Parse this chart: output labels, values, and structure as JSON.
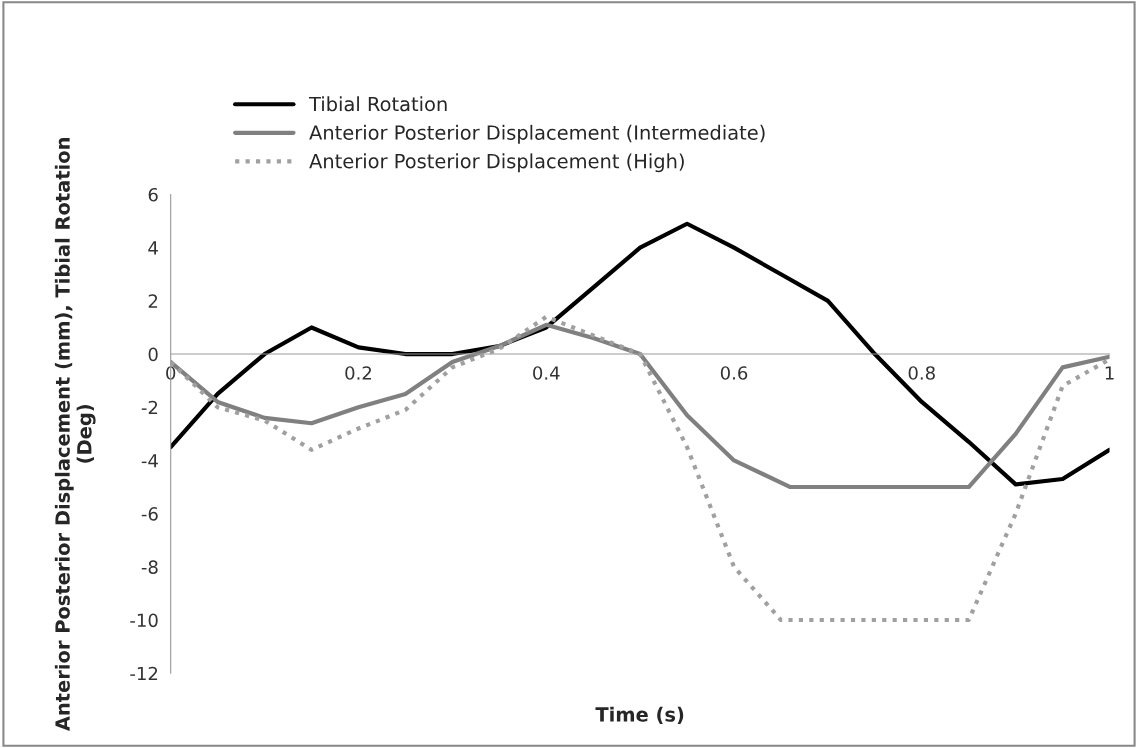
{
  "chart_data": {
    "type": "line",
    "xlabel": "Time (s)",
    "ylabel": "Anterior Posterior Displacement (mm), Tibial Rotation (Deg)",
    "xlim": [
      0,
      1
    ],
    "xticks": [
      0,
      0.2,
      0.4,
      0.6,
      0.8,
      1
    ],
    "ylim": [
      -12,
      6
    ],
    "yticks": [
      -12,
      -10,
      -8,
      -6,
      -4,
      -2,
      0,
      2,
      4,
      6
    ],
    "grid": false,
    "legend": "top left",
    "marker": "none",
    "series": [
      {
        "name": "Tibial Rotation",
        "color": "#000000",
        "line_style": "solid",
        "x": [
          0,
          0.05,
          0.1,
          0.15,
          0.2,
          0.25,
          0.3,
          0.35,
          0.4,
          0.45,
          0.5,
          0.55,
          0.6,
          0.65,
          0.7,
          0.75,
          0.8,
          0.85,
          0.9,
          0.95,
          1
        ],
        "values": [
          -3.5,
          -1.5,
          0,
          1,
          0.25,
          0,
          0,
          0.3,
          1,
          2.5,
          4,
          4.9,
          4,
          3,
          2,
          0,
          -1.8,
          -3.3,
          -4.9,
          -4.7,
          -3.6
        ]
      },
      {
        "name": "Anterior Posterior Displacement (Intermediate)",
        "color": "#808080",
        "line_style": "solid",
        "x": [
          0,
          0.05,
          0.1,
          0.15,
          0.2,
          0.25,
          0.3,
          0.35,
          0.4,
          0.45,
          0.5,
          0.55,
          0.6,
          0.66,
          0.85,
          0.9,
          0.95,
          1
        ],
        "values": [
          -0.3,
          -1.8,
          -2.4,
          -2.6,
          -2,
          -1.5,
          -0.3,
          0.3,
          1.1,
          0.6,
          0,
          -2.3,
          -4,
          -5,
          -5,
          -3,
          -0.5,
          -0.1
        ]
      },
      {
        "name": "Anterior Posterior Displacement (High)",
        "color": "#a0a0a0",
        "line_style": "dotted",
        "x": [
          0,
          0.05,
          0.1,
          0.15,
          0.2,
          0.25,
          0.3,
          0.35,
          0.4,
          0.45,
          0.5,
          0.55,
          0.6,
          0.65,
          0.85,
          0.9,
          0.95,
          1
        ],
        "values": [
          -0.3,
          -2,
          -2.5,
          -3.6,
          -2.8,
          -2.1,
          -0.5,
          0.2,
          1.4,
          0.7,
          0,
          -3.5,
          -8,
          -10,
          -10,
          -6,
          -1.2,
          -0.2
        ]
      }
    ]
  }
}
